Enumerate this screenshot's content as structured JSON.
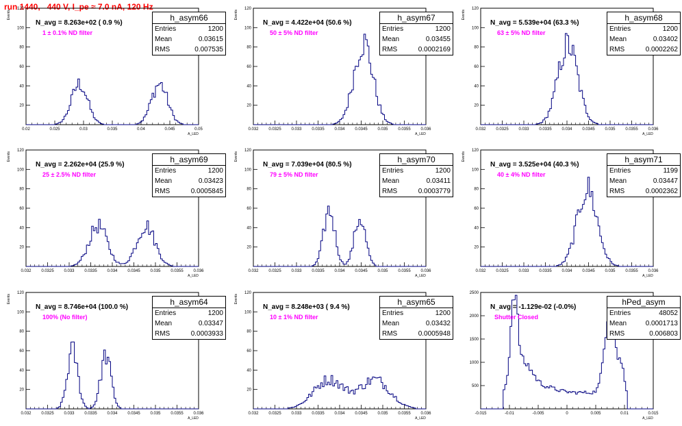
{
  "header": {
    "title": "run 1440,   440 V, I_pe ≈ 7.0 nA, 120 Hz"
  },
  "colors": {
    "hist": "#000080",
    "header": "#ff0000",
    "filter_text": "#ff00ff"
  },
  "stat_labels": {
    "entries": "Entries",
    "mean": "Mean",
    "rms": "RMS"
  },
  "chart_data": [
    {
      "type": "histogram",
      "name": "h_asym66",
      "n_avg": "N_avg = 8.263e+02 ( 0.9 %)",
      "filter": "1 ± 0.1% ND filter",
      "stats": {
        "entries": "1200",
        "mean": "0.03615",
        "rms": "0.007535"
      },
      "xlabel": "A_LED",
      "ylabel": "Events",
      "xlim": [
        0.02,
        0.05
      ],
      "ylim": [
        0,
        120
      ],
      "x_ticks": [
        "0.02",
        "0.025",
        "0.03",
        "0.035",
        "0.04",
        "0.045",
        "0.05"
      ],
      "x_tick_values": [
        0.02,
        0.025,
        0.03,
        0.035,
        0.04,
        0.045,
        0.05
      ],
      "y_ticks": [
        "20",
        "40",
        "60",
        "80",
        "100",
        "120"
      ],
      "y_tick_values": [
        20,
        40,
        60,
        80,
        100,
        120
      ],
      "peaks": [
        {
          "mu": 0.0293,
          "sigma": 0.0014,
          "amp": 42
        },
        {
          "mu": 0.0432,
          "sigma": 0.0014,
          "amp": 42
        }
      ]
    },
    {
      "type": "histogram",
      "name": "h_asym67",
      "n_avg": "N_avg = 4.422e+04 (50.6 %)",
      "filter": "50 ± 5% ND filter",
      "stats": {
        "entries": "1200",
        "mean": "0.03455",
        "rms": "0.0002169"
      },
      "xlabel": "A_LED",
      "ylabel": "Events",
      "xlim": [
        0.032,
        0.036
      ],
      "ylim": [
        0,
        120
      ],
      "x_ticks": [
        "0.032",
        "0.0325",
        "0.033",
        "0.0335",
        "0.034",
        "0.0345",
        "0.035",
        "0.0355",
        "0.036"
      ],
      "x_tick_values": [
        0.032,
        0.0325,
        0.033,
        0.0335,
        0.034,
        0.0345,
        0.035,
        0.0355,
        0.036
      ],
      "y_ticks": [
        "20",
        "40",
        "60",
        "80",
        "100",
        "120"
      ],
      "y_tick_values": [
        20,
        40,
        60,
        80,
        100,
        120
      ],
      "peaks": [
        {
          "mu": 0.03455,
          "sigma": 0.00022,
          "amp": 85
        }
      ]
    },
    {
      "type": "histogram",
      "name": "h_asym68",
      "n_avg": "N_avg = 5.539e+04 (63.3 %)",
      "filter": "63 ± 5% ND filter",
      "stats": {
        "entries": "1200",
        "mean": "0.03402",
        "rms": "0.0002262"
      },
      "xlabel": "A_LED",
      "ylabel": "Events",
      "xlim": [
        0.032,
        0.036
      ],
      "ylim": [
        0,
        120
      ],
      "x_ticks": [
        "0.032",
        "0.0325",
        "0.033",
        "0.0335",
        "0.034",
        "0.0345",
        "0.035",
        "0.0355",
        "0.036"
      ],
      "x_tick_values": [
        0.032,
        0.0325,
        0.033,
        0.0335,
        0.034,
        0.0345,
        0.035,
        0.0355,
        0.036
      ],
      "y_ticks": [
        "20",
        "40",
        "60",
        "80",
        "100",
        "120"
      ],
      "y_tick_values": [
        20,
        40,
        60,
        80,
        100,
        120
      ],
      "peaks": [
        {
          "mu": 0.03402,
          "sigma": 0.00023,
          "amp": 82
        }
      ]
    },
    {
      "type": "histogram",
      "name": "h_asym69",
      "n_avg": "N_avg = 2.262e+04 (25.9 %)",
      "filter": "25 ± 2.5% ND filter",
      "stats": {
        "entries": "1200",
        "mean": "0.03423",
        "rms": "0.0005845"
      },
      "xlabel": "A_LED",
      "ylabel": "Events",
      "xlim": [
        0.032,
        0.036
      ],
      "ylim": [
        0,
        120
      ],
      "x_ticks": [
        "0.032",
        "0.0325",
        "0.033",
        "0.0335",
        "0.034",
        "0.0345",
        "0.035",
        "0.0355",
        "0.036"
      ],
      "x_tick_values": [
        0.032,
        0.0325,
        0.033,
        0.0335,
        0.034,
        0.0345,
        0.035,
        0.0355,
        0.036
      ],
      "y_ticks": [
        "20",
        "40",
        "60",
        "80",
        "100",
        "120"
      ],
      "y_tick_values": [
        20,
        40,
        60,
        80,
        100,
        120
      ],
      "peaks": [
        {
          "mu": 0.03367,
          "sigma": 0.00021,
          "amp": 42
        },
        {
          "mu": 0.03478,
          "sigma": 0.00021,
          "amp": 42
        }
      ]
    },
    {
      "type": "histogram",
      "name": "h_asym70",
      "n_avg": "N_avg = 7.039e+04 (80.5 %)",
      "filter": "79 ± 5% ND filter",
      "stats": {
        "entries": "1200",
        "mean": "0.03411",
        "rms": "0.0003779"
      },
      "xlabel": "A_LED",
      "ylabel": "Events",
      "xlim": [
        0.032,
        0.036
      ],
      "ylim": [
        0,
        120
      ],
      "x_ticks": [
        "0.032",
        "0.0325",
        "0.033",
        "0.0335",
        "0.034",
        "0.0345",
        "0.035",
        "0.0355",
        "0.036"
      ],
      "x_tick_values": [
        0.032,
        0.0325,
        0.033,
        0.0335,
        0.034,
        0.0345,
        0.035,
        0.0355,
        0.036
      ],
      "y_ticks": [
        "20",
        "40",
        "60",
        "80",
        "100",
        "120"
      ],
      "y_tick_values": [
        20,
        40,
        60,
        80,
        100,
        120
      ],
      "peaks": [
        {
          "mu": 0.03376,
          "sigma": 0.00013,
          "amp": 58
        },
        {
          "mu": 0.03447,
          "sigma": 0.00013,
          "amp": 50
        }
      ]
    },
    {
      "type": "histogram",
      "name": "h_asym71",
      "n_avg": "N_avg = 3.525e+04 (40.3 %)",
      "filter": "40 ± 4% ND filter",
      "stats": {
        "entries": "1199",
        "mean": "0.03447",
        "rms": "0.0002362"
      },
      "xlabel": "A_LED",
      "ylabel": "Events",
      "xlim": [
        0.032,
        0.036
      ],
      "ylim": [
        0,
        120
      ],
      "x_ticks": [
        "0.032",
        "0.0325",
        "0.033",
        "0.0335",
        "0.034",
        "0.0345",
        "0.035",
        "0.0355",
        "0.036"
      ],
      "x_tick_values": [
        0.032,
        0.0325,
        0.033,
        0.0335,
        0.034,
        0.0345,
        0.035,
        0.0355,
        0.036
      ],
      "y_ticks": [
        "20",
        "40",
        "60",
        "80",
        "100",
        "120"
      ],
      "y_tick_values": [
        20,
        40,
        60,
        80,
        100,
        120
      ],
      "peaks": [
        {
          "mu": 0.03447,
          "sigma": 0.00023,
          "amp": 80
        }
      ]
    },
    {
      "type": "histogram",
      "name": "h_asym64",
      "n_avg": "N_avg = 8.746e+04 (100.0 %)",
      "filter": "100% (No filter)",
      "stats": {
        "entries": "1200",
        "mean": "0.03347",
        "rms": "0.0003933"
      },
      "xlabel": "A_LED",
      "ylabel": "Events",
      "xlim": [
        0.032,
        0.036
      ],
      "ylim": [
        0,
        120
      ],
      "x_ticks": [
        "0.032",
        "0.0325",
        "0.033",
        "0.0335",
        "0.034",
        "0.0345",
        "0.035",
        "0.0355",
        "0.036"
      ],
      "x_tick_values": [
        0.032,
        0.0325,
        0.033,
        0.0335,
        0.034,
        0.0345,
        0.035,
        0.0355,
        0.036
      ],
      "y_ticks": [
        "20",
        "40",
        "60",
        "80",
        "100",
        "120"
      ],
      "y_tick_values": [
        20,
        40,
        60,
        80,
        100,
        120
      ],
      "peaks": [
        {
          "mu": 0.03308,
          "sigma": 0.00012,
          "amp": 60
        },
        {
          "mu": 0.03385,
          "sigma": 0.00012,
          "amp": 55
        }
      ]
    },
    {
      "type": "histogram",
      "name": "h_asym65",
      "n_avg": "N_avg = 8.248e+03 ( 9.4 %)",
      "filter": "10 ± 1% ND filter",
      "stats": {
        "entries": "1200",
        "mean": "0.03432",
        "rms": "0.0005948"
      },
      "xlabel": "A_LED",
      "ylabel": "Events",
      "xlim": [
        0.032,
        0.036
      ],
      "ylim": [
        0,
        120
      ],
      "x_ticks": [
        "0.032",
        "0.0325",
        "0.033",
        "0.0335",
        "0.034",
        "0.0345",
        "0.035",
        "0.0355",
        "0.036"
      ],
      "x_tick_values": [
        0.032,
        0.0325,
        0.033,
        0.0335,
        0.034,
        0.0345,
        0.035,
        0.0355,
        0.036
      ],
      "y_ticks": [
        "20",
        "40",
        "60",
        "80",
        "100",
        "120"
      ],
      "y_tick_values": [
        20,
        40,
        60,
        80,
        100,
        120
      ],
      "peaks": [
        {
          "mu": 0.03375,
          "sigma": 0.00035,
          "amp": 30
        },
        {
          "mu": 0.03482,
          "sigma": 0.00035,
          "amp": 30
        }
      ]
    },
    {
      "type": "histogram",
      "name": "hPed_asym",
      "n_avg": "N_avg = -1.129e-02 (-0.0%)",
      "filter": "Shutter Closed",
      "stats": {
        "entries": "48052",
        "mean": "0.0001713",
        "rms": "0.006803"
      },
      "xlabel": "A_LED",
      "ylabel": "",
      "xlim": [
        -0.015,
        0.015
      ],
      "ylim": [
        0,
        2500
      ],
      "x_ticks": [
        "-0.015",
        "-0.01",
        "-0.005",
        "0",
        "0.005",
        "0.01",
        "0.015"
      ],
      "x_tick_values": [
        -0.015,
        -0.01,
        -0.005,
        0,
        0.005,
        0.01,
        0.015
      ],
      "y_ticks": [
        "500",
        "1000",
        "1500",
        "2000",
        "2500"
      ],
      "y_tick_values": [
        500,
        1000,
        1500,
        2000,
        2500
      ],
      "pedestal": true
    }
  ]
}
